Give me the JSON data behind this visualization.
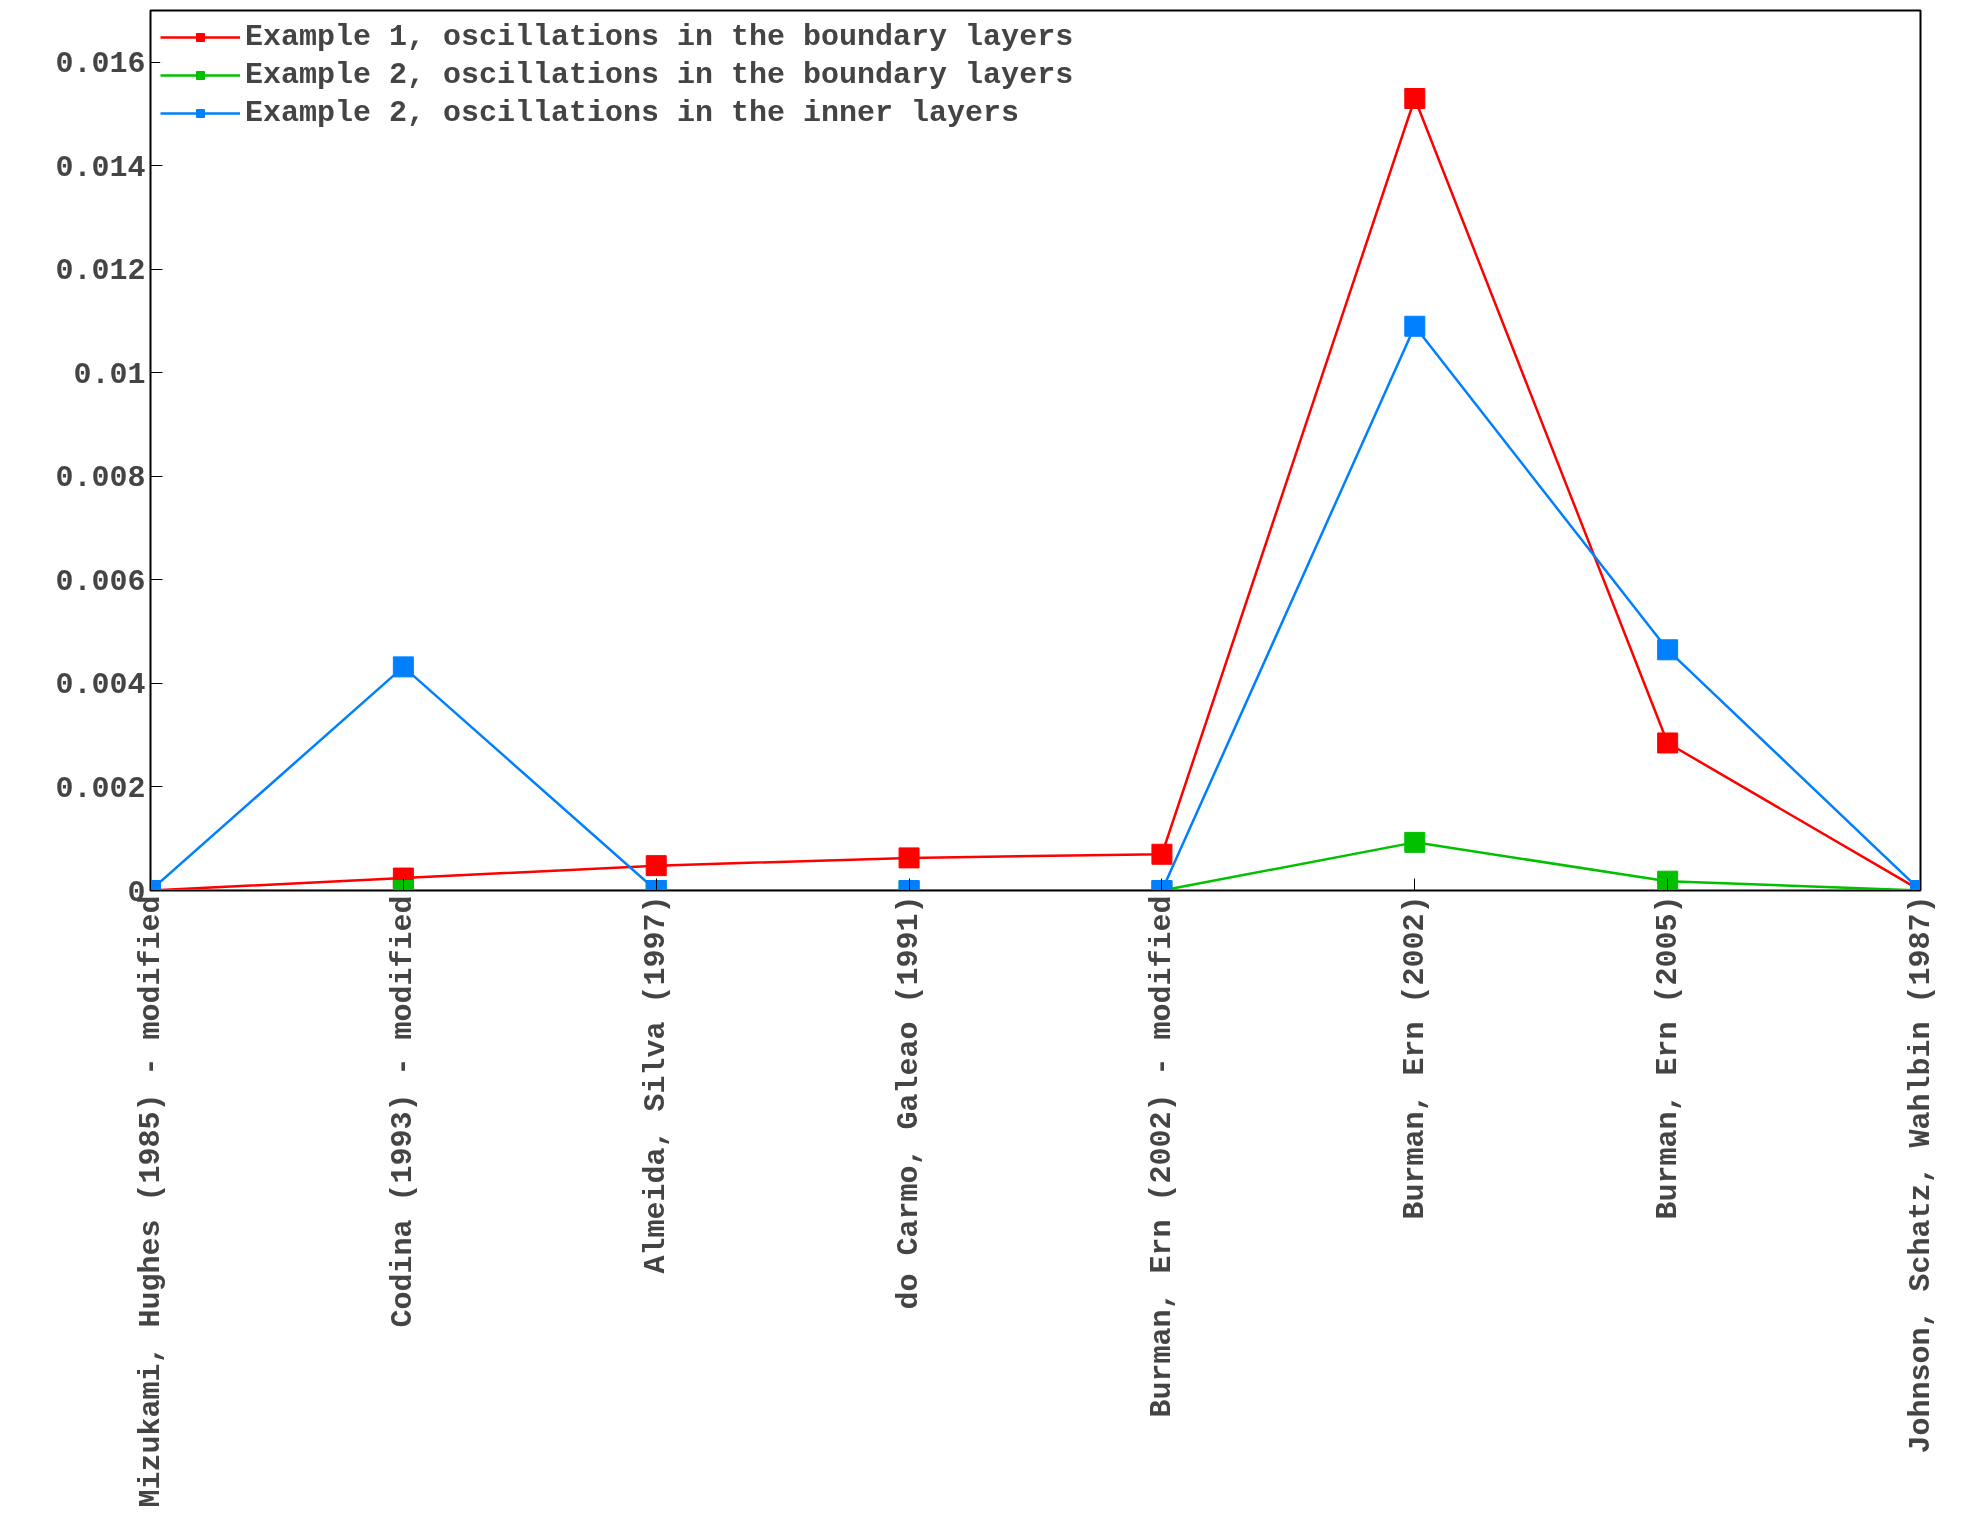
{
  "chart_data": {
    "type": "line",
    "marker": "square",
    "line_style": "solid",
    "legend": "top left",
    "grid": false,
    "categories": [
      "Mizukami, Hughes (1985) - modified",
      "Codina (1993) - modified",
      "Almeida, Silva (1997)",
      "do Carmo, Galeao (1991)",
      "Burman, Ern (2002) - modified",
      "Burman, Ern (2002)",
      "Burman, Ern (2005)",
      "Johnson, Schatz, Wahlbin (1987)"
    ],
    "ylim": [
      0,
      0.017
    ],
    "yticks": [
      0,
      0.002,
      0.004,
      0.006,
      0.008,
      0.01,
      0.012,
      0.014,
      0.016
    ],
    "series": [
      {
        "name": "Example 1, oscillations in the boundary layers",
        "color": "#ff0000",
        "values": [
          0,
          0.00024,
          0.00048,
          0.00063,
          0.0007,
          0.0153,
          0.00285,
          0
        ]
      },
      {
        "name": "Example 2, oscillations in the boundary layers",
        "color": "#00c000",
        "values": [
          0,
          0,
          0,
          0,
          0,
          0.00093,
          0.00018,
          0
        ]
      },
      {
        "name": "Example 2, oscillations in the inner layers",
        "color": "#0080ff",
        "values": [
          0,
          0.00432,
          0,
          0,
          0,
          0.0109,
          0.00465,
          0
        ]
      }
    ]
  }
}
